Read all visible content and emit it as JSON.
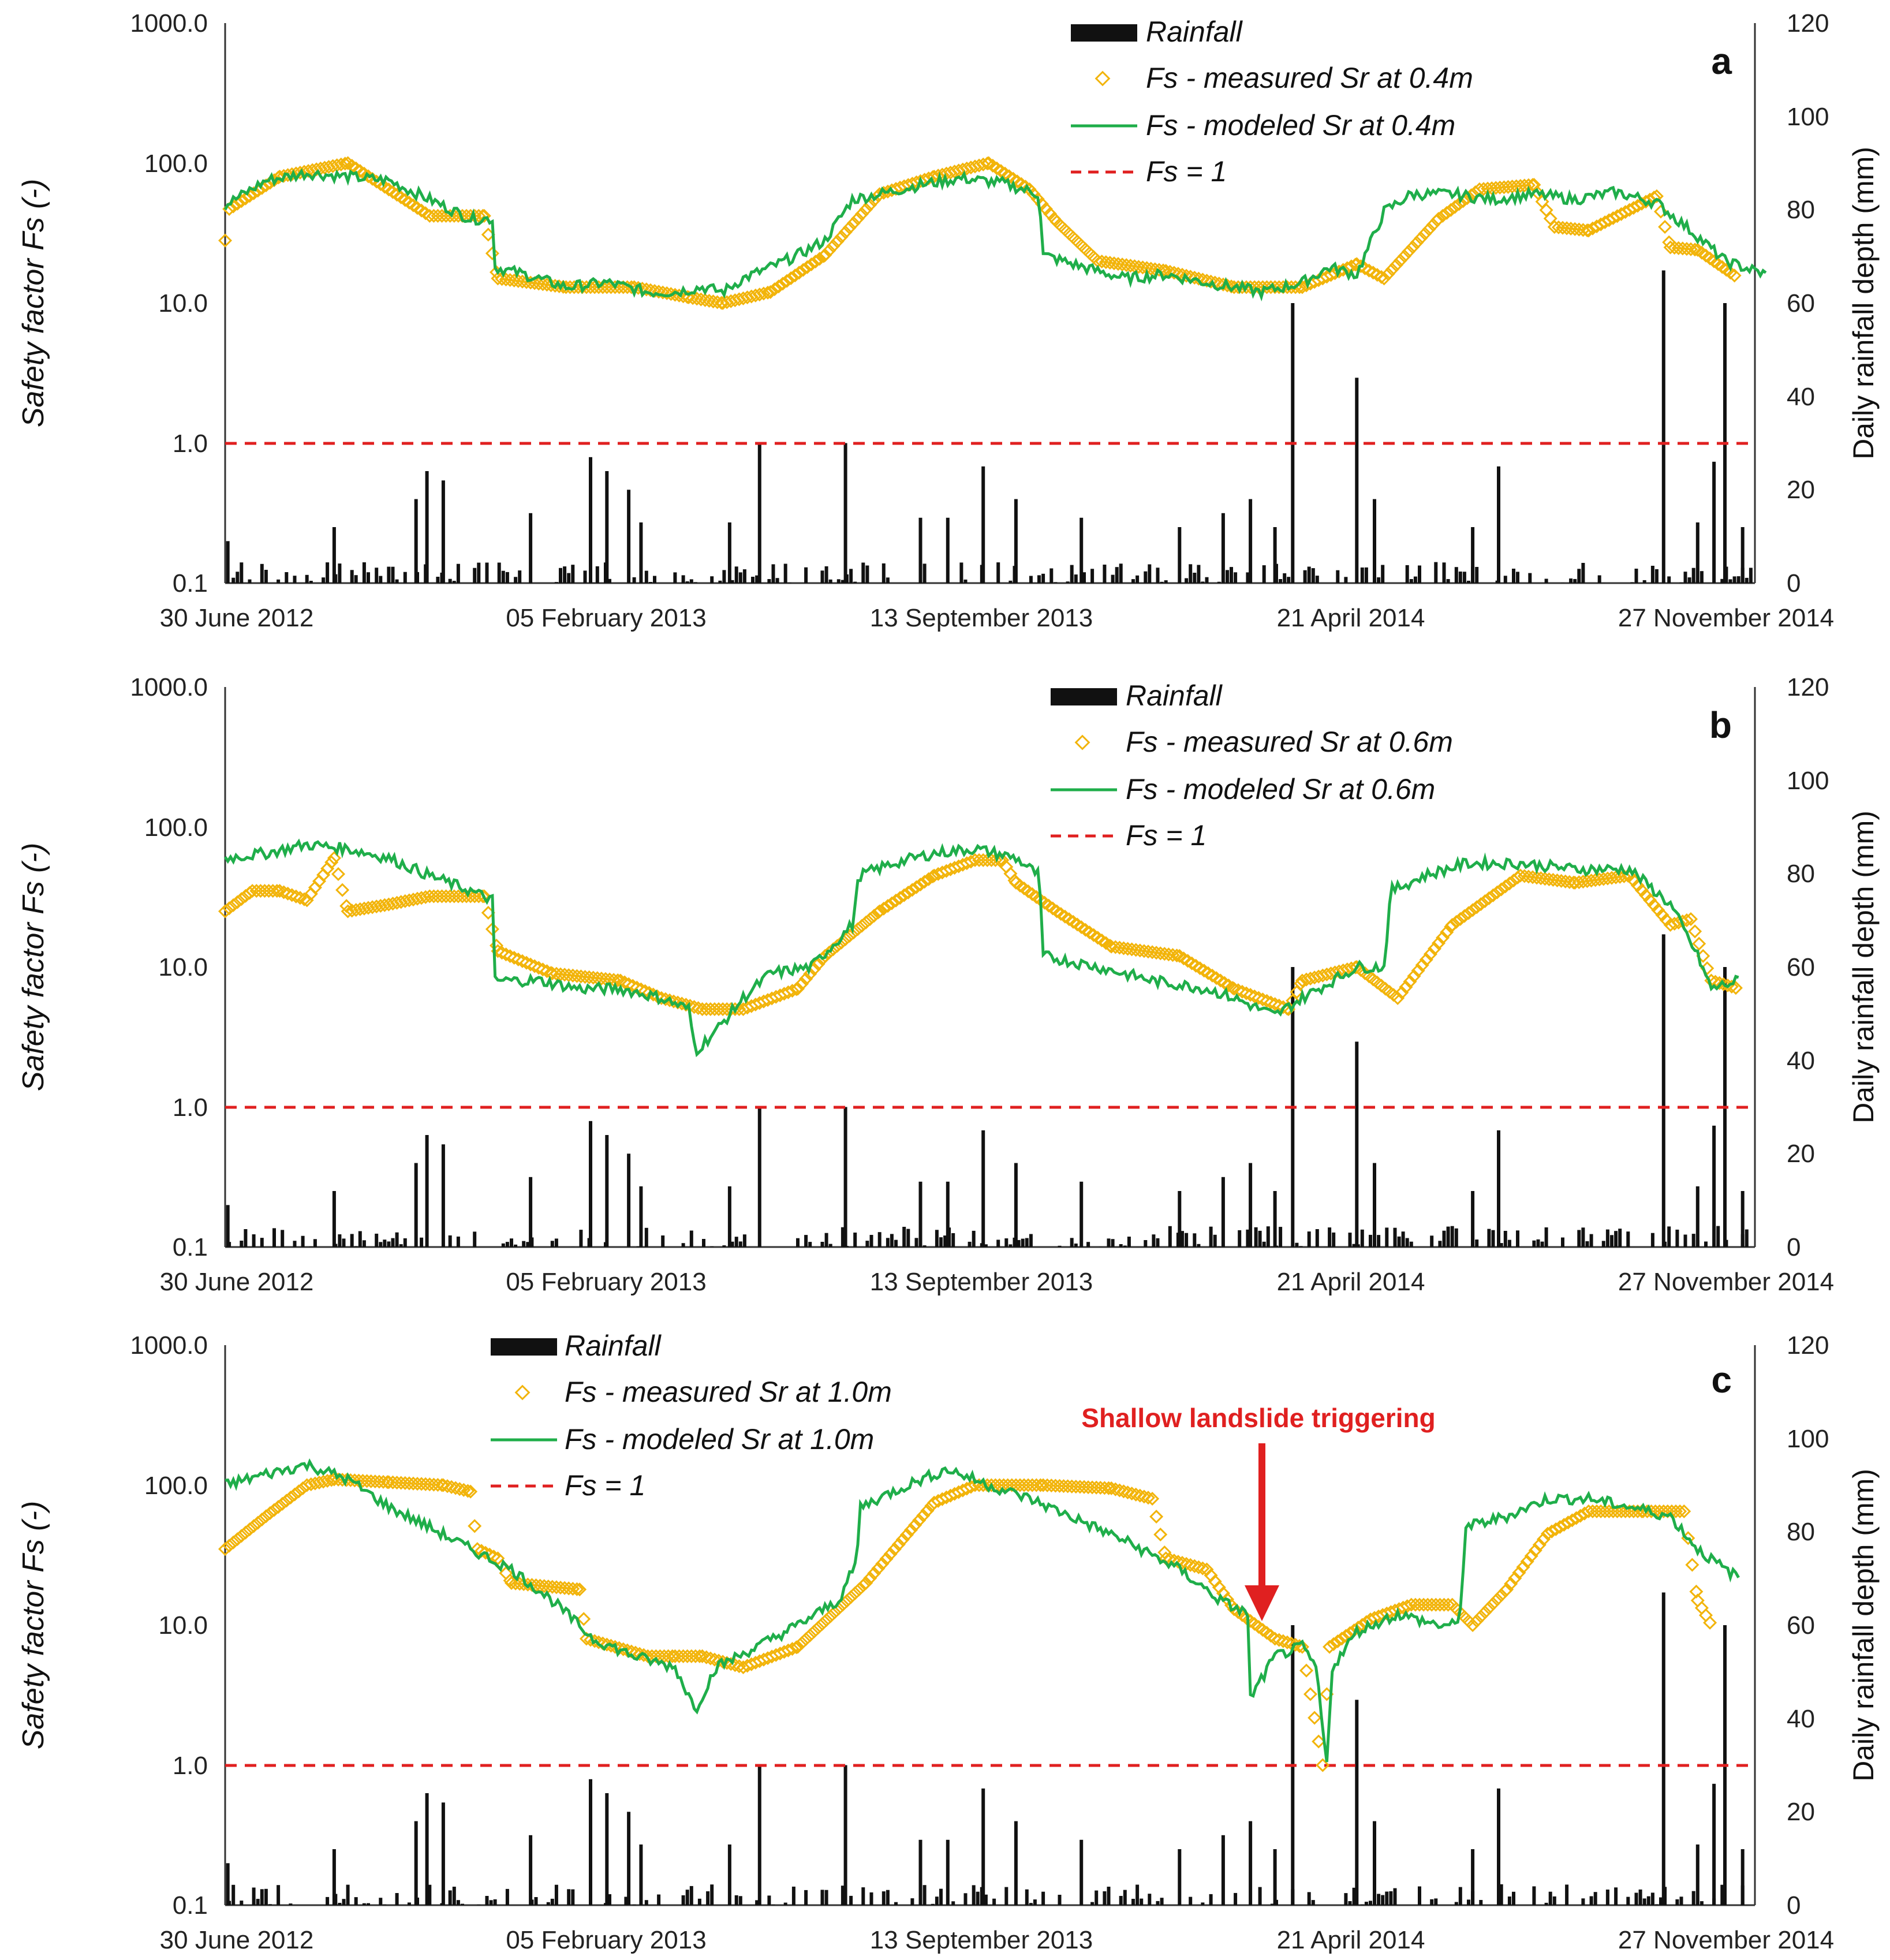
{
  "chart_data": [
    {
      "panel": "a",
      "type": "line",
      "ylabel": "Safety factor Fs (-)",
      "y2label": "Daily rainfall depth (mm)",
      "y_ticks": [
        "1000.0",
        "100.0",
        "10.0",
        "1.0",
        "0.1"
      ],
      "y2_ticks": [
        "120",
        "100",
        "80",
        "60",
        "40",
        "20",
        "0"
      ],
      "x_ticks": [
        "30 June 2012",
        "05 February 2013",
        "13 September 2013",
        "21 April 2014",
        "27 November 2014"
      ],
      "legend": [
        "Rainfall",
        "Fs - measured Sr at 0.4m",
        "Fs - modeled Sr at 0.4m",
        "Fs = 1"
      ],
      "ylim": [
        0.1,
        1000
      ],
      "y2lim": [
        0,
        120
      ],
      "modeled": [
        [
          0,
          50
        ],
        [
          30,
          75
        ],
        [
          60,
          85
        ],
        [
          90,
          80
        ],
        [
          120,
          75
        ],
        [
          150,
          55
        ],
        [
          180,
          40
        ],
        [
          196,
          40
        ],
        [
          198,
          18
        ],
        [
          220,
          16
        ],
        [
          250,
          13
        ],
        [
          280,
          14
        ],
        [
          310,
          12
        ],
        [
          330,
          12
        ],
        [
          350,
          13
        ],
        [
          365,
          12
        ],
        [
          380,
          15
        ],
        [
          400,
          18
        ],
        [
          420,
          22
        ],
        [
          440,
          28
        ],
        [
          460,
          55
        ],
        [
          480,
          60
        ],
        [
          510,
          70
        ],
        [
          540,
          78
        ],
        [
          570,
          72
        ],
        [
          597,
          60
        ],
        [
          600,
          22
        ],
        [
          630,
          18
        ],
        [
          660,
          15
        ],
        [
          690,
          16
        ],
        [
          720,
          14
        ],
        [
          740,
          13
        ],
        [
          760,
          12
        ],
        [
          790,
          14
        ],
        [
          810,
          18
        ],
        [
          830,
          16
        ],
        [
          850,
          45
        ],
        [
          870,
          60
        ],
        [
          900,
          60
        ],
        [
          930,
          55
        ],
        [
          960,
          60
        ],
        [
          990,
          55
        ],
        [
          1020,
          62
        ],
        [
          1050,
          52
        ],
        [
          1080,
          30
        ],
        [
          1100,
          20
        ],
        [
          1130,
          16
        ]
      ],
      "measured": [
        [
          0,
          28
        ],
        [
          3,
          47
        ],
        [
          40,
          80
        ],
        [
          90,
          100
        ],
        [
          150,
          42
        ],
        [
          190,
          42
        ],
        [
          200,
          15
        ],
        [
          250,
          13
        ],
        [
          300,
          13
        ],
        [
          340,
          11
        ],
        [
          365,
          10
        ],
        [
          400,
          12
        ],
        [
          440,
          22
        ],
        [
          480,
          60
        ],
        [
          520,
          80
        ],
        [
          560,
          100
        ],
        [
          590,
          65
        ],
        [
          610,
          38
        ],
        [
          640,
          20
        ],
        [
          690,
          17
        ],
        [
          740,
          13
        ],
        [
          790,
          13
        ],
        [
          830,
          19
        ],
        [
          850,
          15
        ],
        [
          890,
          40
        ],
        [
          920,
          65
        ],
        [
          960,
          70
        ],
        [
          975,
          35
        ],
        [
          1000,
          33
        ],
        [
          1050,
          58
        ],
        [
          1060,
          25
        ],
        [
          1080,
          24
        ],
        [
          1110,
          15
        ]
      ],
      "rain_spikes": [
        [
          2,
          9
        ],
        [
          80,
          12
        ],
        [
          140,
          18
        ],
        [
          148,
          24
        ],
        [
          160,
          22
        ],
        [
          224,
          15
        ],
        [
          268,
          27
        ],
        [
          280,
          24
        ],
        [
          296,
          20
        ],
        [
          305,
          13
        ],
        [
          370,
          13
        ],
        [
          392,
          30
        ],
        [
          455,
          30
        ],
        [
          510,
          14
        ],
        [
          530,
          14
        ],
        [
          556,
          25
        ],
        [
          580,
          18
        ],
        [
          628,
          14
        ],
        [
          700,
          12
        ],
        [
          732,
          15
        ],
        [
          752,
          18
        ],
        [
          770,
          12
        ],
        [
          783,
          60
        ],
        [
          830,
          44
        ],
        [
          843,
          18
        ],
        [
          915,
          12
        ],
        [
          934,
          25
        ],
        [
          1055,
          67
        ],
        [
          1080,
          13
        ],
        [
          1092,
          26
        ],
        [
          1100,
          60
        ],
        [
          1113,
          12
        ]
      ]
    },
    {
      "panel": "b",
      "type": "line",
      "ylabel": "Safety factor Fs (-)",
      "y2label": "Daily rainfall depth (mm)",
      "y_ticks": [
        "1000.0",
        "100.0",
        "10.0",
        "1.0",
        "0.1"
      ],
      "y2_ticks": [
        "120",
        "100",
        "80",
        "60",
        "40",
        "20",
        "0"
      ],
      "x_ticks": [
        "30 June 2012",
        "05 February 2013",
        "13 September 2013",
        "21 April 2014",
        "27 November 2014"
      ],
      "legend": [
        "Rainfall",
        "Fs - measured Sr at 0.6m",
        "Fs - modeled Sr at 0.6m",
        "Fs = 1"
      ],
      "ylim": [
        0.1,
        1000
      ],
      "y2lim": [
        0,
        120
      ],
      "modeled": [
        [
          0,
          60
        ],
        [
          30,
          65
        ],
        [
          60,
          75
        ],
        [
          90,
          70
        ],
        [
          120,
          60
        ],
        [
          150,
          45
        ],
        [
          180,
          35
        ],
        [
          196,
          30
        ],
        [
          198,
          8
        ],
        [
          230,
          8
        ],
        [
          260,
          7
        ],
        [
          290,
          7
        ],
        [
          320,
          6
        ],
        [
          340,
          5
        ],
        [
          345,
          2.5
        ],
        [
          360,
          3.5
        ],
        [
          380,
          6
        ],
        [
          400,
          9
        ],
        [
          430,
          10
        ],
        [
          460,
          20
        ],
        [
          465,
          45
        ],
        [
          490,
          55
        ],
        [
          520,
          65
        ],
        [
          550,
          70
        ],
        [
          580,
          60
        ],
        [
          597,
          45
        ],
        [
          600,
          12
        ],
        [
          640,
          10
        ],
        [
          680,
          8
        ],
        [
          720,
          7
        ],
        [
          740,
          6
        ],
        [
          770,
          4.5
        ],
        [
          790,
          6
        ],
        [
          830,
          10
        ],
        [
          850,
          10
        ],
        [
          855,
          35
        ],
        [
          880,
          45
        ],
        [
          910,
          55
        ],
        [
          950,
          55
        ],
        [
          990,
          50
        ],
        [
          1030,
          50
        ],
        [
          1060,
          28
        ],
        [
          1080,
          12
        ],
        [
          1090,
          7
        ],
        [
          1110,
          8
        ]
      ],
      "measured": [
        [
          0,
          25
        ],
        [
          20,
          35
        ],
        [
          40,
          35
        ],
        [
          60,
          30
        ],
        [
          80,
          60
        ],
        [
          90,
          25
        ],
        [
          120,
          28
        ],
        [
          150,
          32
        ],
        [
          190,
          32
        ],
        [
          200,
          13
        ],
        [
          240,
          9
        ],
        [
          290,
          8
        ],
        [
          320,
          6
        ],
        [
          350,
          5
        ],
        [
          380,
          5
        ],
        [
          420,
          7
        ],
        [
          440,
          12
        ],
        [
          480,
          25
        ],
        [
          520,
          45
        ],
        [
          550,
          58
        ],
        [
          570,
          58
        ],
        [
          580,
          40
        ],
        [
          610,
          25
        ],
        [
          650,
          14
        ],
        [
          700,
          12
        ],
        [
          740,
          7
        ],
        [
          780,
          5
        ],
        [
          790,
          8
        ],
        [
          830,
          10
        ],
        [
          860,
          6
        ],
        [
          900,
          20
        ],
        [
          950,
          45
        ],
        [
          990,
          40
        ],
        [
          1030,
          45
        ],
        [
          1060,
          20
        ],
        [
          1075,
          22
        ],
        [
          1090,
          8
        ],
        [
          1110,
          7
        ]
      ],
      "rain_spikes": [
        [
          2,
          9
        ],
        [
          80,
          12
        ],
        [
          140,
          18
        ],
        [
          148,
          24
        ],
        [
          160,
          22
        ],
        [
          224,
          15
        ],
        [
          268,
          27
        ],
        [
          280,
          24
        ],
        [
          296,
          20
        ],
        [
          305,
          13
        ],
        [
          370,
          13
        ],
        [
          392,
          30
        ],
        [
          455,
          30
        ],
        [
          510,
          14
        ],
        [
          530,
          14
        ],
        [
          556,
          25
        ],
        [
          580,
          18
        ],
        [
          628,
          14
        ],
        [
          700,
          12
        ],
        [
          732,
          15
        ],
        [
          752,
          18
        ],
        [
          770,
          12
        ],
        [
          783,
          60
        ],
        [
          830,
          44
        ],
        [
          843,
          18
        ],
        [
          915,
          12
        ],
        [
          934,
          25
        ],
        [
          1055,
          67
        ],
        [
          1080,
          13
        ],
        [
          1092,
          26
        ],
        [
          1100,
          60
        ],
        [
          1113,
          12
        ]
      ]
    },
    {
      "panel": "c",
      "type": "line",
      "ylabel": "Safety factor Fs (-)",
      "y2label": "Daily rainfall depth (mm)",
      "y_ticks": [
        "1000.0",
        "100.0",
        "10.0",
        "1.0",
        "0.1"
      ],
      "y2_ticks": [
        "120",
        "100",
        "80",
        "60",
        "40",
        "20",
        "0"
      ],
      "x_ticks": [
        "30 June 2012",
        "05 February 2013",
        "13 September 2013",
        "21 April 2014",
        "27 November 2014"
      ],
      "legend": [
        "Rainfall",
        "Fs - measured Sr at 1.0m",
        "Fs - modeled Sr at 1.0m",
        "Fs = 1"
      ],
      "annotation": "Shallow landslide triggering",
      "ylim": [
        0.1,
        1000
      ],
      "y2lim": [
        0,
        120
      ],
      "modeled": [
        [
          0,
          100
        ],
        [
          30,
          120
        ],
        [
          60,
          140
        ],
        [
          90,
          110
        ],
        [
          120,
          70
        ],
        [
          150,
          50
        ],
        [
          180,
          35
        ],
        [
          210,
          25
        ],
        [
          240,
          15
        ],
        [
          270,
          8
        ],
        [
          300,
          6
        ],
        [
          330,
          5
        ],
        [
          345,
          2.5
        ],
        [
          360,
          5
        ],
        [
          390,
          7
        ],
        [
          420,
          10
        ],
        [
          450,
          15
        ],
        [
          463,
          28
        ],
        [
          466,
          70
        ],
        [
          500,
          100
        ],
        [
          530,
          130
        ],
        [
          560,
          100
        ],
        [
          590,
          80
        ],
        [
          620,
          60
        ],
        [
          660,
          40
        ],
        [
          700,
          25
        ],
        [
          730,
          15
        ],
        [
          750,
          12
        ],
        [
          752,
          3
        ],
        [
          770,
          6
        ],
        [
          790,
          7
        ],
        [
          800,
          5
        ],
        [
          808,
          1.0
        ],
        [
          812,
          5
        ],
        [
          830,
          9
        ],
        [
          860,
          12
        ],
        [
          890,
          10
        ],
        [
          905,
          10
        ],
        [
          910,
          50
        ],
        [
          940,
          60
        ],
        [
          970,
          80
        ],
        [
          1000,
          80
        ],
        [
          1030,
          70
        ],
        [
          1060,
          60
        ],
        [
          1080,
          35
        ],
        [
          1100,
          25
        ],
        [
          1110,
          22
        ]
      ],
      "measured": [
        [
          0,
          35
        ],
        [
          30,
          60
        ],
        [
          60,
          100
        ],
        [
          80,
          110
        ],
        [
          120,
          105
        ],
        [
          160,
          100
        ],
        [
          180,
          90
        ],
        [
          185,
          35
        ],
        [
          200,
          30
        ],
        [
          210,
          20
        ],
        [
          260,
          18
        ],
        [
          265,
          8
        ],
        [
          310,
          6
        ],
        [
          330,
          6
        ],
        [
          350,
          6
        ],
        [
          380,
          5
        ],
        [
          420,
          7
        ],
        [
          470,
          20
        ],
        [
          520,
          75
        ],
        [
          550,
          100
        ],
        [
          600,
          100
        ],
        [
          650,
          95
        ],
        [
          680,
          80
        ],
        [
          690,
          30
        ],
        [
          720,
          25
        ],
        [
          740,
          13
        ],
        [
          770,
          8
        ],
        [
          790,
          7
        ],
        [
          805,
          1.0
        ],
        [
          810,
          7
        ],
        [
          840,
          11
        ],
        [
          870,
          14
        ],
        [
          900,
          14
        ],
        [
          915,
          10
        ],
        [
          940,
          18
        ],
        [
          970,
          45
        ],
        [
          1000,
          65
        ],
        [
          1040,
          65
        ],
        [
          1070,
          65
        ],
        [
          1080,
          15
        ],
        [
          1090,
          10
        ]
      ],
      "rain_spikes": [
        [
          2,
          9
        ],
        [
          80,
          12
        ],
        [
          140,
          18
        ],
        [
          148,
          24
        ],
        [
          160,
          22
        ],
        [
          224,
          15
        ],
        [
          268,
          27
        ],
        [
          280,
          24
        ],
        [
          296,
          20
        ],
        [
          305,
          13
        ],
        [
          370,
          13
        ],
        [
          392,
          30
        ],
        [
          455,
          30
        ],
        [
          510,
          14
        ],
        [
          530,
          14
        ],
        [
          556,
          25
        ],
        [
          580,
          18
        ],
        [
          628,
          14
        ],
        [
          700,
          12
        ],
        [
          732,
          15
        ],
        [
          752,
          18
        ],
        [
          770,
          12
        ],
        [
          783,
          60
        ],
        [
          830,
          44
        ],
        [
          843,
          18
        ],
        [
          915,
          12
        ],
        [
          934,
          25
        ],
        [
          1055,
          67
        ],
        [
          1080,
          13
        ],
        [
          1092,
          26
        ],
        [
          1100,
          60
        ],
        [
          1113,
          12
        ]
      ]
    }
  ],
  "colors": {
    "modeled": "#1fae4a",
    "measured": "#f2b40a",
    "rain": "#111111",
    "threshold": "#e02020",
    "axis": "#333333"
  }
}
